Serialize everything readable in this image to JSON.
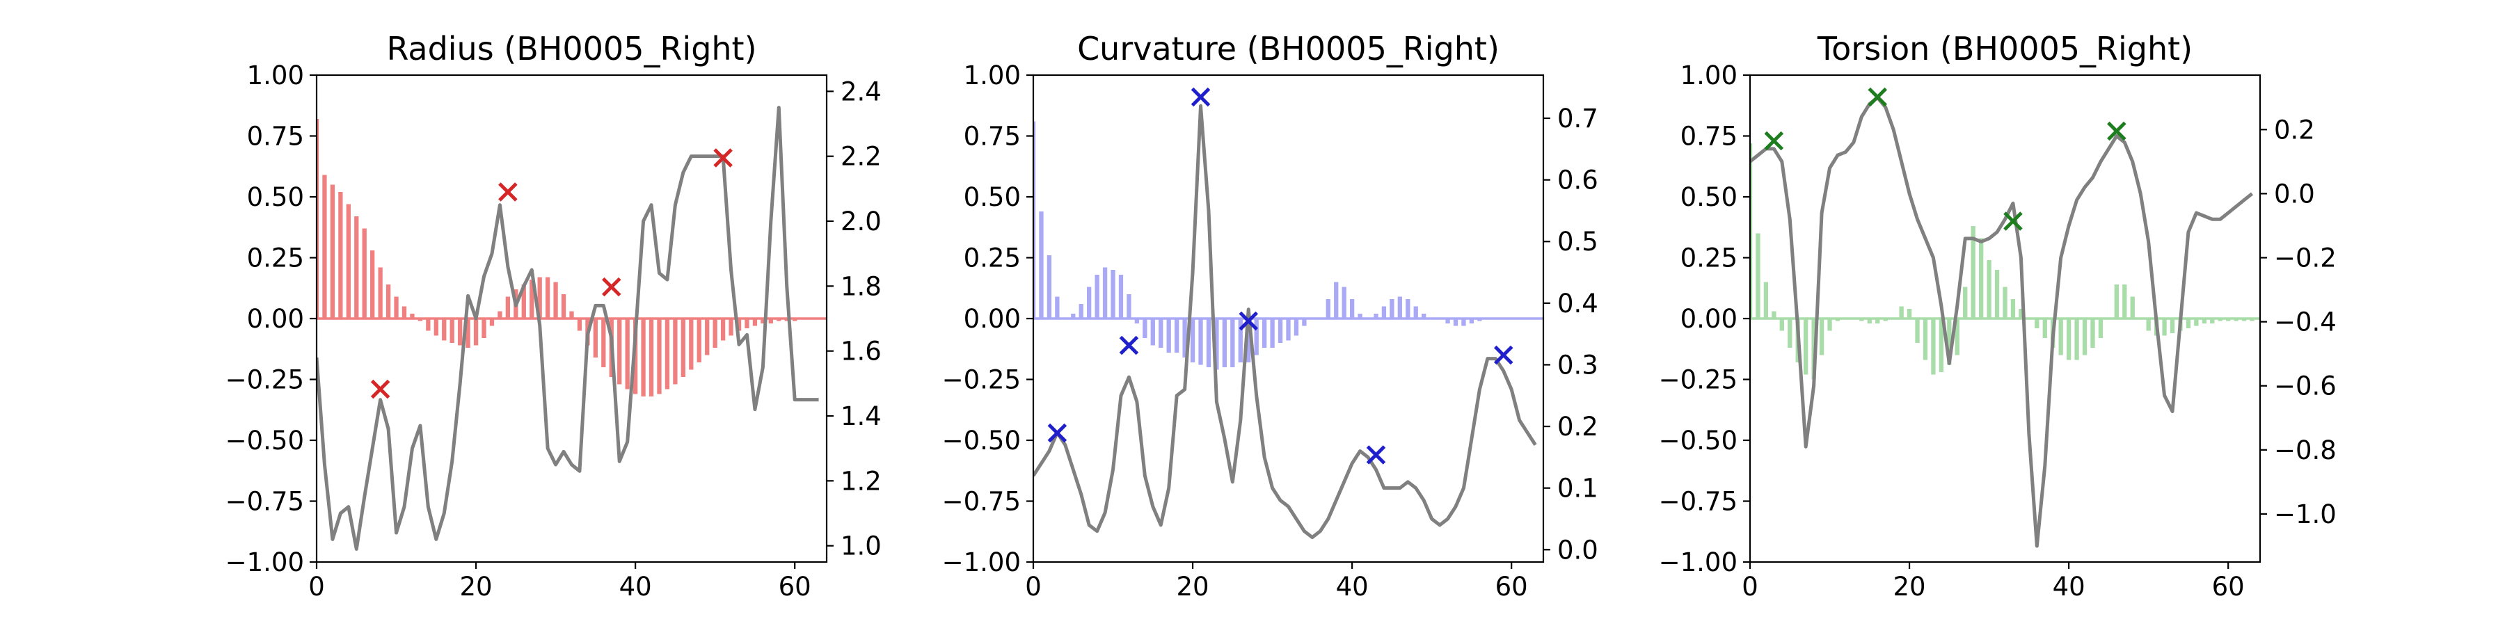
{
  "chart_data": [
    {
      "type": "bar",
      "title": "Radius (BH0005_Right)",
      "xlabel": "",
      "ylabel": "",
      "xlim": [
        0,
        64
      ],
      "ylim": [
        -1,
        1
      ],
      "ylim_right": [
        0.95,
        2.45
      ],
      "x_ticks": [
        "0",
        "20",
        "40",
        "60"
      ],
      "y_ticks": [
        "1.00",
        "0.75",
        "0.50",
        "0.25",
        "0.00",
        "−0.25",
        "−0.50",
        "−0.75",
        "−1.00"
      ],
      "y_ticks_right": [
        "2.4",
        "2.2",
        "2.0",
        "1.8",
        "1.6",
        "1.4",
        "1.2",
        "1.0"
      ],
      "grid": false,
      "colors": {
        "bars": "#f08080",
        "markers": "#d62728",
        "line": "#808080"
      },
      "series": [
        {
          "kind": "bars",
          "axis": "left",
          "values": [
            0.82,
            0.59,
            0.55,
            0.52,
            0.47,
            0.42,
            0.37,
            0.28,
            0.21,
            0.14,
            0.09,
            0.05,
            0.02,
            -0.01,
            -0.05,
            -0.07,
            -0.09,
            -0.1,
            -0.11,
            -0.12,
            -0.11,
            -0.08,
            -0.03,
            0.03,
            0.09,
            0.12,
            0.14,
            0.16,
            0.17,
            0.17,
            0.15,
            0.1,
            0.03,
            -0.05,
            -0.11,
            -0.16,
            -0.2,
            -0.24,
            -0.27,
            -0.29,
            -0.31,
            -0.32,
            -0.32,
            -0.31,
            -0.29,
            -0.27,
            -0.24,
            -0.21,
            -0.18,
            -0.15,
            -0.12,
            -0.09,
            -0.07,
            -0.05,
            -0.04,
            -0.03,
            -0.02,
            -0.02,
            -0.01,
            -0.01,
            -0.01,
            0.0,
            0.0,
            0.0
          ]
        },
        {
          "kind": "line",
          "axis": "right",
          "x": [
            0,
            1,
            2,
            3,
            4,
            5,
            6,
            7,
            8,
            9,
            10,
            11,
            12,
            13,
            14,
            15,
            16,
            17,
            18,
            19,
            20,
            21,
            22,
            23,
            24,
            25,
            26,
            27,
            28,
            29,
            30,
            31,
            32,
            33,
            34,
            35,
            36,
            37,
            38,
            39,
            40,
            41,
            42,
            43,
            44,
            45,
            46,
            47,
            48,
            49,
            50,
            51,
            52,
            53,
            54,
            55,
            56,
            57,
            58,
            59,
            60,
            61,
            62,
            63
          ],
          "values": [
            1.58,
            1.25,
            1.02,
            1.1,
            1.12,
            0.99,
            1.15,
            1.3,
            1.45,
            1.36,
            1.04,
            1.12,
            1.3,
            1.37,
            1.12,
            1.02,
            1.1,
            1.26,
            1.5,
            1.77,
            1.7,
            1.83,
            1.9,
            2.05,
            1.86,
            1.74,
            1.8,
            1.85,
            1.68,
            1.3,
            1.25,
            1.29,
            1.25,
            1.23,
            1.65,
            1.74,
            1.74,
            1.64,
            1.26,
            1.32,
            1.65,
            2.0,
            2.05,
            1.84,
            1.82,
            2.05,
            2.15,
            2.2,
            2.2,
            2.2,
            2.2,
            2.2,
            1.85,
            1.62,
            1.65,
            1.42,
            1.55,
            2.0,
            2.35,
            1.8,
            1.45,
            1.45,
            1.45,
            1.45
          ]
        },
        {
          "kind": "markers",
          "axis": "left",
          "x": [
            8,
            24,
            37,
            51
          ],
          "values": [
            -0.29,
            0.52,
            0.13,
            0.66
          ]
        }
      ]
    },
    {
      "type": "bar",
      "title": "Curvature (BH0005_Right)",
      "xlabel": "",
      "ylabel": "",
      "xlim": [
        0,
        64
      ],
      "ylim": [
        -1,
        1
      ],
      "ylim_right": [
        -0.02,
        0.77
      ],
      "x_ticks": [
        "0",
        "20",
        "40",
        "60"
      ],
      "y_ticks": [
        "1.00",
        "0.75",
        "0.50",
        "0.25",
        "0.00",
        "−0.25",
        "−0.50",
        "−0.75",
        "−1.00"
      ],
      "y_ticks_right": [
        "0.7",
        "0.6",
        "0.5",
        "0.4",
        "0.3",
        "0.2",
        "0.1",
        "0.0"
      ],
      "grid": false,
      "colors": {
        "bars": "#a9a9f5",
        "markers": "#1f1fcc",
        "line": "#808080"
      },
      "series": [
        {
          "kind": "bars",
          "axis": "left",
          "values": [
            0.81,
            0.44,
            0.26,
            0.09,
            0.0,
            0.02,
            0.06,
            0.13,
            0.18,
            0.21,
            0.2,
            0.18,
            0.1,
            -0.02,
            -0.08,
            -0.11,
            -0.12,
            -0.14,
            -0.14,
            -0.16,
            -0.18,
            -0.19,
            -0.2,
            -0.21,
            -0.2,
            -0.2,
            -0.18,
            -0.18,
            -0.15,
            -0.12,
            -0.12,
            -0.1,
            -0.09,
            -0.07,
            -0.03,
            0.0,
            0.0,
            0.08,
            0.15,
            0.13,
            0.08,
            0.02,
            0.0,
            0.02,
            0.05,
            0.08,
            0.09,
            0.08,
            0.05,
            0.02,
            0.0,
            0.0,
            -0.02,
            -0.03,
            -0.03,
            -0.02,
            -0.01,
            0.0,
            0.0,
            0.0,
            0.0,
            0.0,
            0.0,
            0.0
          ]
        },
        {
          "kind": "line",
          "axis": "right",
          "x": [
            0,
            1,
            2,
            3,
            4,
            5,
            6,
            7,
            8,
            9,
            10,
            11,
            12,
            13,
            14,
            15,
            16,
            17,
            18,
            19,
            20,
            21,
            22,
            23,
            24,
            25,
            26,
            27,
            28,
            29,
            30,
            31,
            32,
            33,
            34,
            35,
            36,
            37,
            38,
            39,
            40,
            41,
            42,
            43,
            44,
            45,
            46,
            47,
            48,
            49,
            50,
            51,
            52,
            53,
            54,
            55,
            56,
            57,
            58,
            59,
            60,
            61,
            62,
            63
          ],
          "values": [
            0.12,
            0.14,
            0.16,
            0.19,
            0.17,
            0.13,
            0.09,
            0.04,
            0.03,
            0.06,
            0.13,
            0.25,
            0.28,
            0.24,
            0.12,
            0.07,
            0.04,
            0.1,
            0.25,
            0.26,
            0.45,
            0.72,
            0.55,
            0.24,
            0.18,
            0.11,
            0.21,
            0.39,
            0.25,
            0.15,
            0.1,
            0.08,
            0.07,
            0.05,
            0.03,
            0.02,
            0.03,
            0.05,
            0.08,
            0.11,
            0.14,
            0.16,
            0.15,
            0.13,
            0.1,
            0.1,
            0.1,
            0.11,
            0.1,
            0.08,
            0.05,
            0.04,
            0.05,
            0.07,
            0.1,
            0.18,
            0.26,
            0.31,
            0.31,
            0.29,
            0.26,
            0.21,
            0.19,
            0.17
          ]
        },
        {
          "kind": "markers",
          "axis": "left",
          "x": [
            3,
            12,
            21,
            27,
            43,
            59
          ],
          "values": [
            -0.47,
            -0.11,
            0.91,
            -0.01,
            -0.56,
            -0.15
          ]
        }
      ]
    },
    {
      "type": "bar",
      "title": "Torsion (BH0005_Right)",
      "xlabel": "",
      "ylabel": "",
      "xlim": [
        0,
        64
      ],
      "ylim": [
        -1,
        1
      ],
      "ylim_right": [
        -1.15,
        0.37
      ],
      "x_ticks": [
        "0",
        "20",
        "40",
        "60"
      ],
      "y_ticks": [
        "1.00",
        "0.75",
        "0.50",
        "0.25",
        "0.00",
        "−0.25",
        "−0.50",
        "−0.75",
        "−1.00"
      ],
      "y_ticks_right": [
        "0.2",
        "0.0",
        "−0.2",
        "−0.4",
        "−0.6",
        "−0.8",
        "−1.0"
      ],
      "grid": false,
      "colors": {
        "bars": "#a8dca8",
        "markers": "#1e7d1e",
        "line": "#808080"
      },
      "series": [
        {
          "kind": "bars",
          "axis": "left",
          "values": [
            0.72,
            0.35,
            0.15,
            0.03,
            -0.05,
            -0.12,
            -0.18,
            -0.23,
            -0.25,
            -0.15,
            -0.05,
            -0.01,
            0.0,
            0.0,
            -0.01,
            -0.02,
            -0.02,
            -0.01,
            0.0,
            0.05,
            0.04,
            -0.1,
            -0.17,
            -0.23,
            -0.22,
            -0.19,
            -0.15,
            0.13,
            0.38,
            0.33,
            0.24,
            0.2,
            0.13,
            0.08,
            0.04,
            0.0,
            -0.04,
            -0.08,
            -0.12,
            -0.15,
            -0.17,
            -0.17,
            -0.15,
            -0.12,
            -0.08,
            0.0,
            0.14,
            0.14,
            0.09,
            0.0,
            -0.05,
            -0.07,
            -0.07,
            -0.06,
            -0.05,
            -0.04,
            -0.03,
            -0.02,
            -0.02,
            -0.01,
            -0.01,
            -0.01,
            -0.01,
            -0.01
          ]
        },
        {
          "kind": "line",
          "axis": "right",
          "x": [
            0,
            1,
            2,
            3,
            4,
            5,
            6,
            7,
            8,
            9,
            10,
            11,
            12,
            13,
            14,
            15,
            16,
            17,
            18,
            19,
            20,
            21,
            22,
            23,
            24,
            25,
            26,
            27,
            28,
            29,
            30,
            31,
            32,
            33,
            34,
            35,
            36,
            37,
            38,
            39,
            40,
            41,
            42,
            43,
            44,
            45,
            46,
            47,
            48,
            49,
            50,
            51,
            52,
            53,
            54,
            55,
            56,
            57,
            58,
            59,
            60,
            61,
            62,
            63
          ],
          "values": [
            0.1,
            0.12,
            0.14,
            0.14,
            0.1,
            -0.08,
            -0.42,
            -0.79,
            -0.6,
            -0.06,
            0.08,
            0.12,
            0.13,
            0.16,
            0.24,
            0.28,
            0.3,
            0.27,
            0.2,
            0.1,
            0.0,
            -0.08,
            -0.14,
            -0.2,
            -0.35,
            -0.53,
            -0.35,
            -0.14,
            -0.14,
            -0.15,
            -0.14,
            -0.12,
            -0.08,
            -0.03,
            -0.2,
            -0.75,
            -1.1,
            -0.85,
            -0.45,
            -0.2,
            -0.1,
            -0.02,
            0.02,
            0.05,
            0.1,
            0.14,
            0.18,
            0.16,
            0.1,
            0.0,
            -0.15,
            -0.4,
            -0.63,
            -0.68,
            -0.4,
            -0.12,
            -0.06,
            -0.07,
            -0.08,
            -0.08,
            -0.06,
            -0.04,
            -0.02,
            0.0
          ]
        },
        {
          "kind": "markers",
          "axis": "left",
          "x": [
            3,
            16,
            33,
            46
          ],
          "values": [
            0.73,
            0.91,
            0.4,
            0.77
          ]
        }
      ]
    }
  ]
}
